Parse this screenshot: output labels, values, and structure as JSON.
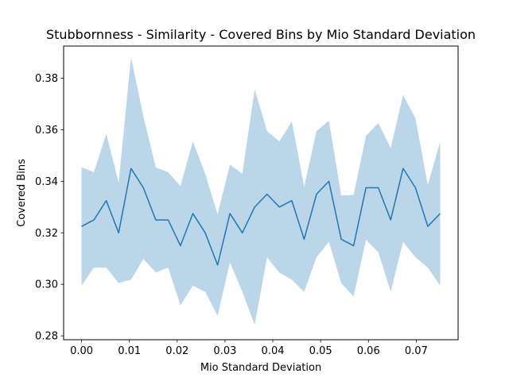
{
  "chart_data": {
    "type": "line",
    "title": "Stubbornness - Similarity - Covered Bins by Mio Standard Deviation",
    "xlabel": "Mio Standard Deviation",
    "ylabel": "Covered Bins",
    "xlim": [
      -0.00375,
      0.07875
    ],
    "ylim": [
      0.2785,
      0.3925
    ],
    "xticks": [
      0.0,
      0.01,
      0.02,
      0.03,
      0.04,
      0.05,
      0.06,
      0.07
    ],
    "xtick_labels": [
      "0.00",
      "0.01",
      "0.02",
      "0.03",
      "0.04",
      "0.05",
      "0.06",
      "0.07"
    ],
    "yticks": [
      0.28,
      0.3,
      0.32,
      0.34,
      0.36,
      0.38
    ],
    "ytick_labels": [
      "0.28",
      "0.30",
      "0.32",
      "0.34",
      "0.36",
      "0.38"
    ],
    "grid": false,
    "line_color": "#1f77b4",
    "band_color": "#1f77b4",
    "band_opacity": 0.3,
    "x": [
      0.0,
      0.0025862,
      0.0051724,
      0.0077586,
      0.0103448,
      0.012931,
      0.0155172,
      0.0181034,
      0.0206897,
      0.0232759,
      0.0258621,
      0.0284483,
      0.0310345,
      0.0336207,
      0.0362069,
      0.0387931,
      0.0413793,
      0.0439655,
      0.0465517,
      0.0491379,
      0.0517241,
      0.0543103,
      0.0568966,
      0.0594828,
      0.062069,
      0.0646552,
      0.0672414,
      0.0698276,
      0.0724138,
      0.075
    ],
    "series": [
      {
        "values": [
          0.3225,
          0.325,
          0.3325,
          0.32,
          0.345,
          0.3375,
          0.325,
          0.325,
          0.315,
          0.3275,
          0.32,
          0.3075,
          0.3275,
          0.32,
          0.33,
          0.335,
          0.33,
          0.3325,
          0.3175,
          0.335,
          0.34,
          0.3175,
          0.315,
          0.3375,
          0.3375,
          0.325,
          0.345,
          0.3375,
          0.3225,
          0.3275
        ],
        "lower": [
          0.2995,
          0.3065,
          0.3065,
          0.3005,
          0.3018,
          0.3098,
          0.3046,
          0.3065,
          0.2918,
          0.2995,
          0.2971,
          0.2878,
          0.3085,
          0.2971,
          0.2843,
          0.3105,
          0.3045,
          0.3018,
          0.2971,
          0.3105,
          0.3165,
          0.3005,
          0.2953,
          0.3173,
          0.3124,
          0.2971,
          0.3165,
          0.3105,
          0.3065,
          0.2995
        ],
        "upper": [
          0.3455,
          0.3435,
          0.3585,
          0.3395,
          0.3882,
          0.3652,
          0.3454,
          0.3435,
          0.3382,
          0.3555,
          0.3429,
          0.3272,
          0.3465,
          0.3429,
          0.3757,
          0.3595,
          0.3555,
          0.3632,
          0.3379,
          0.3595,
          0.3635,
          0.3345,
          0.3347,
          0.3577,
          0.3626,
          0.3529,
          0.3735,
          0.3645,
          0.3385,
          0.3555
        ]
      }
    ]
  }
}
